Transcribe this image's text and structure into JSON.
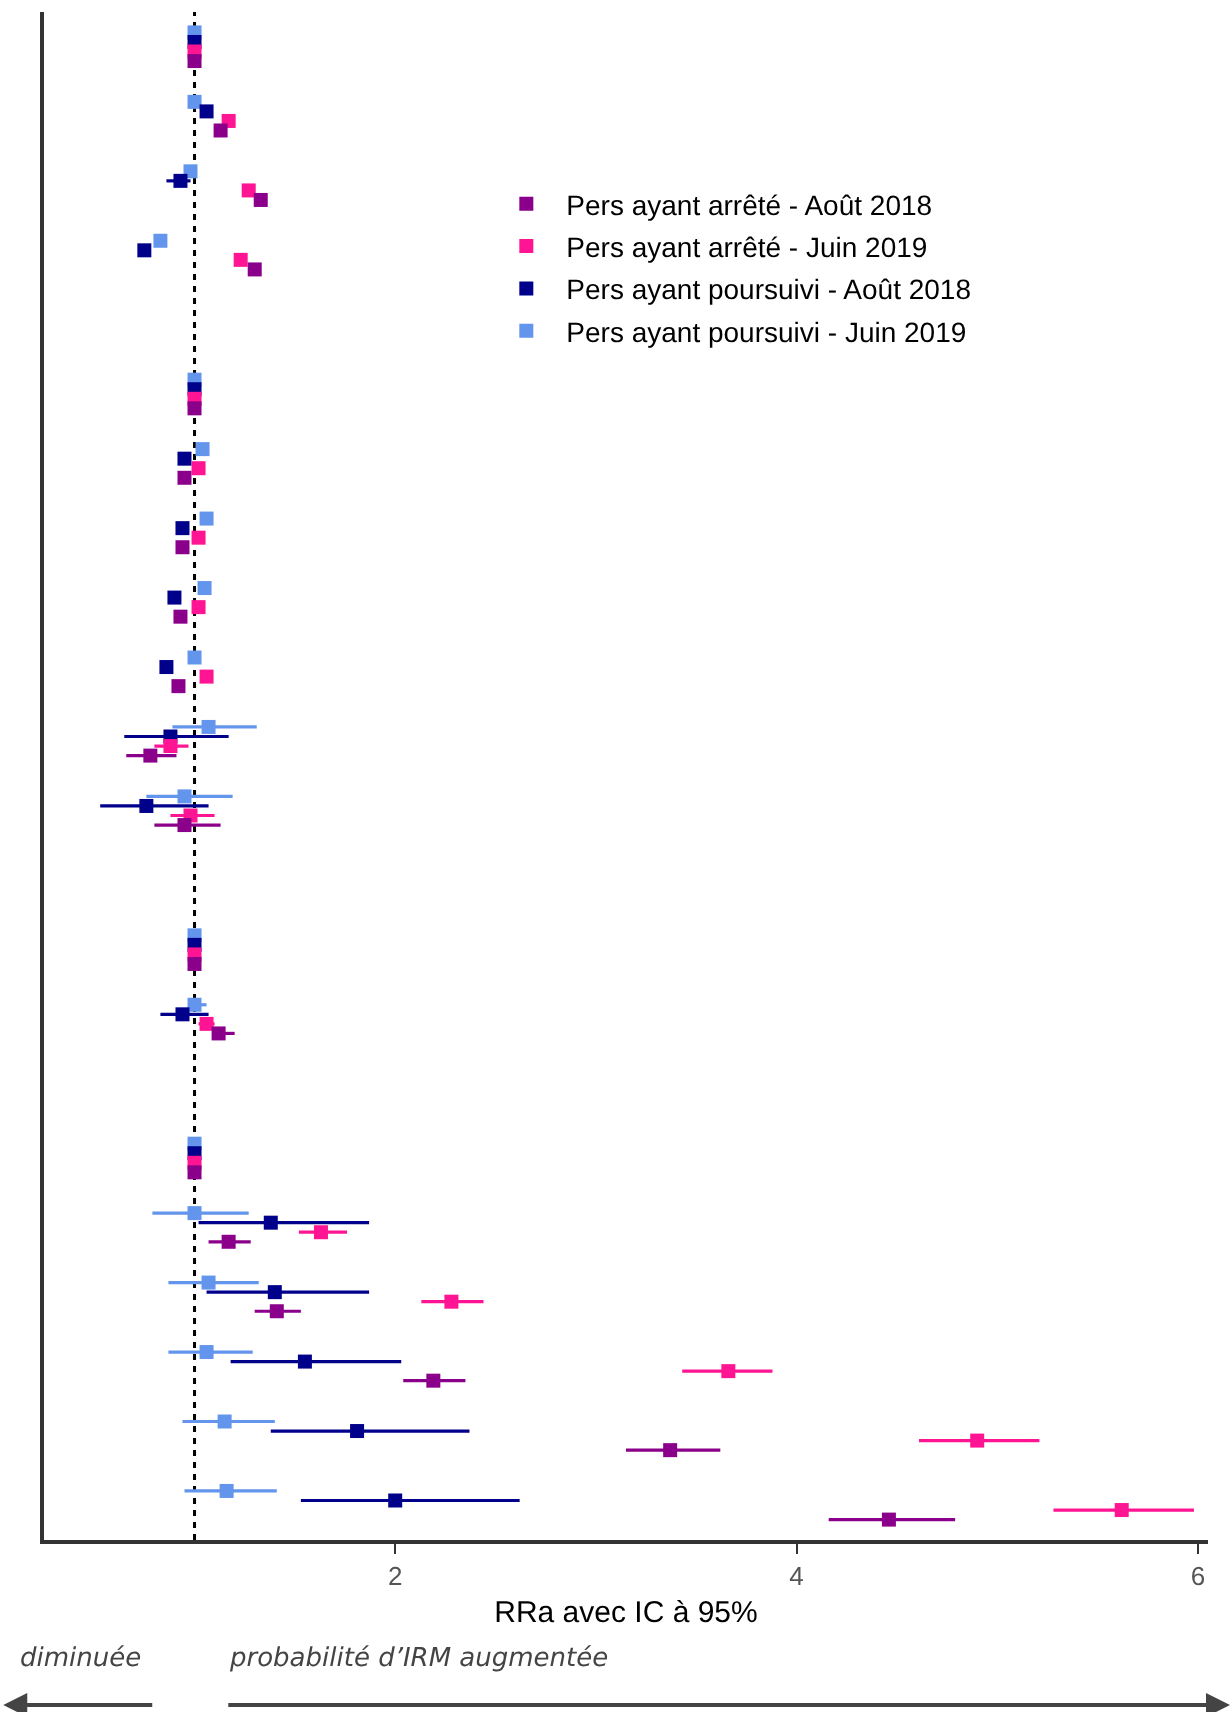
{
  "chart_data": {
    "type": "scatter",
    "orientation": "horizontal",
    "marker": "square",
    "legend": "top right",
    "grid": false,
    "tick_labels": "x",
    "xlabel": "RRa avec IC à 95%",
    "annotations": [
      "diminuée",
      "probabilité d’IRM augmentée"
    ],
    "categories": [
      null,
      null,
      null,
      null,
      null,
      null,
      null,
      null,
      null,
      null,
      null,
      null,
      null,
      null,
      null,
      null,
      null,
      null,
      null,
      null,
      null,
      null
    ],
    "xlim": [
      0.25,
      6.05
    ],
    "xticks": [
      2,
      4,
      6
    ],
    "ref_lines": [
      {
        "axis": "x",
        "value": 1,
        "color": "#000000",
        "line_style": "dotted"
      }
    ],
    "series": [
      {
        "name": "Pers ayant arrêté - Août 2018",
        "color": "#8b008b",
        "values": [
          1,
          1.13,
          1.33,
          1.3,
          null,
          1,
          0.95,
          0.94,
          0.93,
          0.92,
          0.78,
          0.95,
          null,
          1,
          1.12,
          null,
          1,
          1.17,
          1.41,
          2.19,
          3.37,
          4.46
        ],
        "errors": [
          null,
          null,
          null,
          null,
          null,
          null,
          null,
          null,
          null,
          null,
          [
            0.66,
            0.91
          ],
          [
            0.8,
            1.13
          ],
          null,
          null,
          [
            1.09,
            1.2
          ],
          null,
          null,
          [
            1.07,
            1.28
          ],
          [
            1.3,
            1.53
          ],
          [
            2.04,
            2.35
          ],
          [
            3.15,
            3.62
          ],
          [
            4.16,
            4.79
          ]
        ]
      },
      {
        "name": "Pers ayant arrêté - Juin 2019",
        "color": "#ff1493",
        "values": [
          1,
          1.17,
          1.27,
          1.23,
          null,
          1,
          1.02,
          1.02,
          1.02,
          1.06,
          0.88,
          0.98,
          null,
          1,
          1.06,
          null,
          1,
          1.63,
          2.28,
          3.66,
          4.9,
          5.62
        ],
        "errors": [
          null,
          null,
          null,
          null,
          null,
          null,
          null,
          null,
          null,
          null,
          [
            0.8,
            0.97
          ],
          [
            0.88,
            1.1
          ],
          null,
          null,
          [
            1.02,
            1.1
          ],
          null,
          null,
          [
            1.52,
            1.76
          ],
          [
            2.13,
            2.44
          ],
          [
            3.43,
            3.88
          ],
          [
            4.61,
            5.21
          ],
          [
            5.28,
            5.98
          ]
        ]
      },
      {
        "name": "Pers ayant poursuivi - Août 2018",
        "color": "#00008b",
        "values": [
          1,
          1.06,
          0.93,
          0.75,
          null,
          1,
          0.95,
          0.94,
          0.9,
          0.86,
          0.88,
          0.76,
          null,
          1,
          0.94,
          null,
          1,
          1.38,
          1.4,
          1.55,
          1.81,
          2.0
        ],
        "errors": [
          null,
          null,
          [
            0.86,
            0.98
          ],
          null,
          null,
          null,
          null,
          null,
          null,
          null,
          [
            0.65,
            1.17
          ],
          [
            0.53,
            1.07
          ],
          null,
          null,
          [
            0.83,
            1.07
          ],
          null,
          null,
          [
            1.02,
            1.87
          ],
          [
            1.06,
            1.87
          ],
          [
            1.18,
            2.03
          ],
          [
            1.38,
            2.37
          ],
          [
            1.53,
            2.62
          ]
        ]
      },
      {
        "name": "Pers ayant poursuivi - Juin 2019",
        "color": "#6495ed",
        "values": [
          1,
          1.0,
          0.98,
          0.83,
          null,
          1,
          1.04,
          1.06,
          1.05,
          1.0,
          1.07,
          0.95,
          null,
          1,
          1.0,
          null,
          1,
          1.0,
          1.07,
          1.06,
          1.15,
          1.16
        ],
        "errors": [
          null,
          null,
          null,
          null,
          null,
          null,
          null,
          null,
          null,
          null,
          [
            0.89,
            1.31
          ],
          [
            0.76,
            1.19
          ],
          null,
          null,
          [
            0.98,
            1.06
          ],
          null,
          null,
          [
            0.79,
            1.27
          ],
          [
            0.87,
            1.32
          ],
          [
            0.87,
            1.29
          ],
          [
            0.94,
            1.4
          ],
          [
            0.95,
            1.41
          ]
        ]
      }
    ]
  }
}
